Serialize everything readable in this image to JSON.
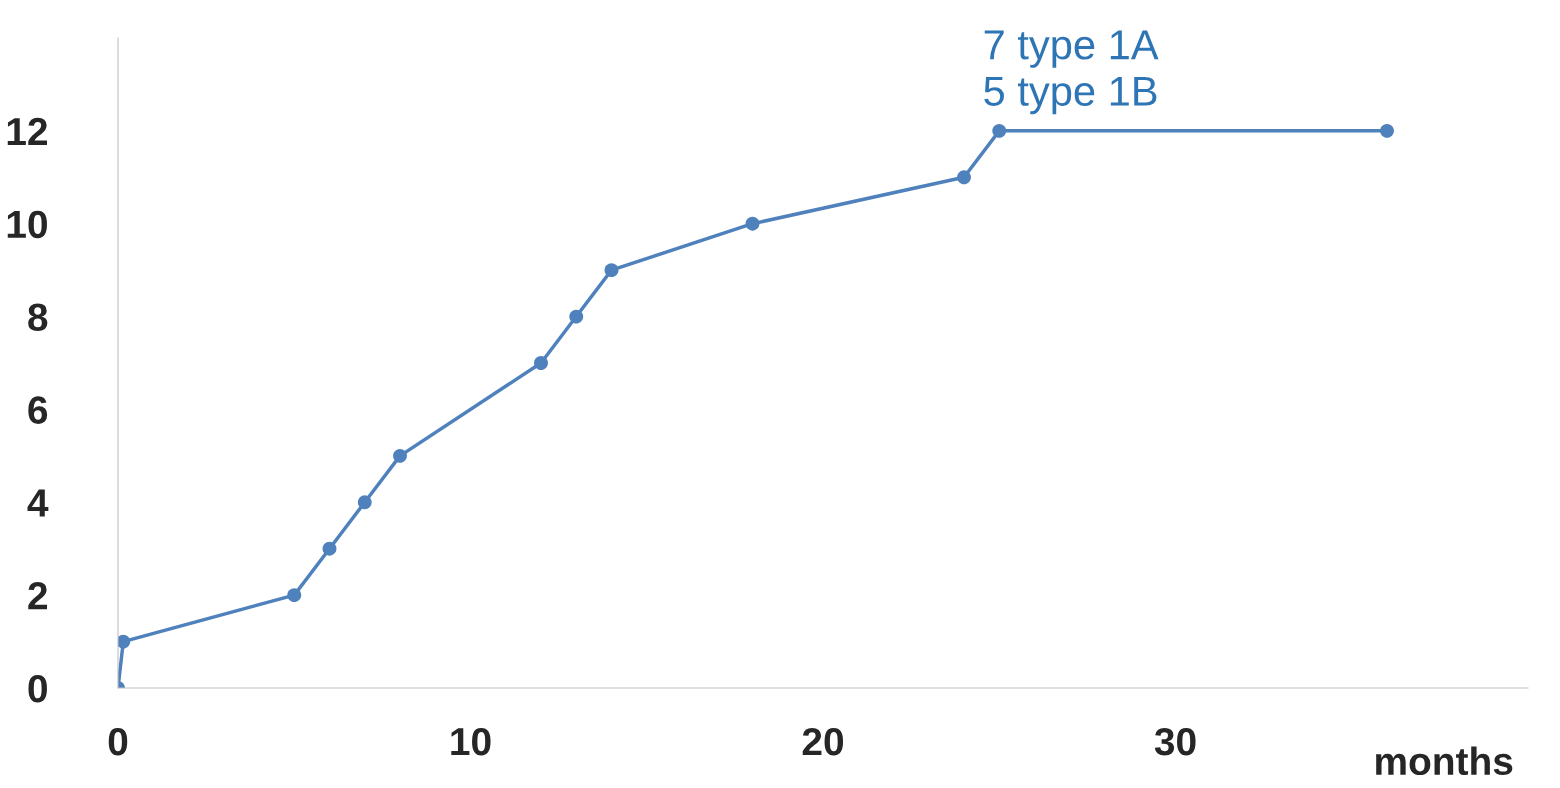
{
  "chart_data": {
    "type": "line",
    "xlabel": "months",
    "x": [
      0,
      0.15,
      5,
      6,
      7,
      8,
      12,
      13,
      14,
      18,
      24,
      25,
      36
    ],
    "series": [
      {
        "color": "#4f81bd",
        "values": [
          0,
          1,
          2,
          3,
          4,
          5,
          7,
          8,
          9,
          10,
          11,
          12,
          12
        ]
      }
    ],
    "xlim": [
      0,
      40
    ],
    "ylim": [
      0,
      14
    ],
    "xticks": [
      0,
      10,
      20,
      30
    ],
    "yticks": [
      0,
      2,
      4,
      6,
      8,
      10,
      12
    ],
    "marker": "circle",
    "line_style": "solid",
    "grid": false,
    "legend": false,
    "annotations": [
      {
        "text": "7 type 1A\n5 type 1B",
        "x": 25,
        "y": 12
      }
    ]
  }
}
